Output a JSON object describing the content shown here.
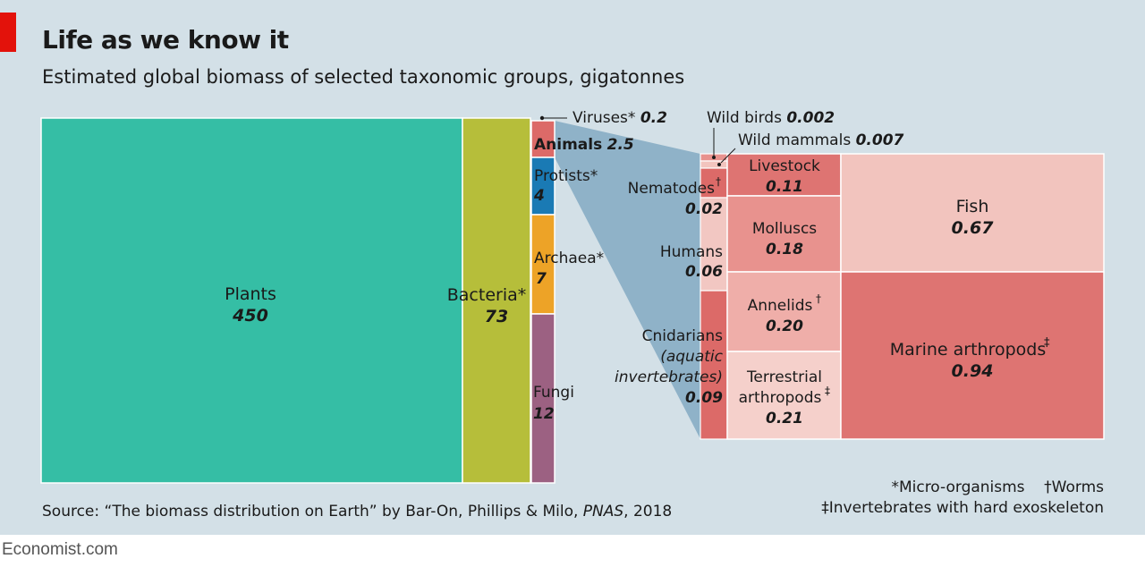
{
  "title": "Life as we know it",
  "subtitle": "Estimated global biomass of selected taxonomic groups, gigatonnes",
  "source": {
    "prefix": "Source: “The biomass distribution on Earth” by Bar-On, Phillips & Milo, ",
    "journal": "PNAS",
    "suffix": ", 2018"
  },
  "notes": {
    "micro": "*Micro-organisms",
    "worms": "†Worms",
    "invertebrates": "‡Invertebrates with hard exoskeleton"
  },
  "brand": "Economist.com",
  "colors": {
    "background": "#d3e0e7",
    "plants": "#35bea5",
    "bacteria": "#b6be3a",
    "animals": "#dc6a68",
    "protists": "#1a7ab4",
    "archaea": "#eda327",
    "fungi": "#9c6182",
    "livestock": "#de7472",
    "molluscs": "#e8928e",
    "annelids": "#efaea9",
    "terrestrial": "#f5d0cb",
    "fish": "#f2c4be",
    "marine": "#de7472",
    "humans": "#f2c7c2",
    "connector": "#8fb2c8"
  },
  "chart_data": {
    "type": "treemap",
    "unit": "gigatonnes",
    "main": [
      {
        "name": "Plants",
        "value": 450
      },
      {
        "name": "Bacteria*",
        "value": 73
      },
      {
        "name": "Viruses*",
        "value": 0.2
      },
      {
        "name": "Animals",
        "value": 2.5
      },
      {
        "name": "Protists*",
        "value": 4
      },
      {
        "name": "Archaea*",
        "value": 7
      },
      {
        "name": "Fungi",
        "value": 12
      }
    ],
    "animals_breakdown": [
      {
        "name": "Wild birds",
        "value": 0.002
      },
      {
        "name": "Wild mammals",
        "value": 0.007
      },
      {
        "name": "Nematodes†",
        "value": 0.02
      },
      {
        "name": "Humans",
        "value": 0.06
      },
      {
        "name": "Cnidarians (aquatic invertebrates)",
        "value": 0.09
      },
      {
        "name": "Livestock",
        "value": 0.11
      },
      {
        "name": "Molluscs",
        "value": 0.18
      },
      {
        "name": "Annelids†",
        "value": 0.2
      },
      {
        "name": "Terrestrial arthropods‡",
        "value": 0.21
      },
      {
        "name": "Fish",
        "value": 0.67
      },
      {
        "name": "Marine arthropods‡",
        "value": 0.94
      }
    ],
    "labels": {
      "plants": {
        "name": "Plants",
        "value": "450"
      },
      "bacteria": {
        "name": "Bacteria*",
        "value": "73"
      },
      "viruses": {
        "name": "Viruses*",
        "value": "0.2"
      },
      "animals": {
        "name": "Animals",
        "value": "2.5"
      },
      "protists": {
        "name": "Protists*",
        "value": "4"
      },
      "archaea": {
        "name": "Archaea*",
        "value": "7"
      },
      "fungi": {
        "name": "Fungi",
        "value": "12"
      },
      "wild_birds": {
        "name": "Wild birds",
        "value": "0.002"
      },
      "wild_mammals": {
        "name": "Wild mammals",
        "value": "0.007"
      },
      "nematodes": {
        "name": "Nematodes",
        "mark": "†",
        "value": "0.02"
      },
      "humans": {
        "name": "Humans",
        "value": "0.06"
      },
      "cnidarians": {
        "name": "Cnidarians",
        "line2": "(aquatic",
        "line3": "invertebrates)",
        "value": "0.09"
      },
      "livestock": {
        "name": "Livestock",
        "value": "0.11"
      },
      "molluscs": {
        "name": "Molluscs",
        "value": "0.18"
      },
      "annelids": {
        "name": "Annelids",
        "mark": "†",
        "value": "0.20"
      },
      "terrestrial": {
        "name": "Terrestrial",
        "line2": "arthropods",
        "mark": "‡",
        "value": "0.21"
      },
      "fish": {
        "name": "Fish",
        "value": "0.67"
      },
      "marine": {
        "name": "Marine arthropods",
        "mark": "‡",
        "value": "0.94"
      }
    }
  }
}
